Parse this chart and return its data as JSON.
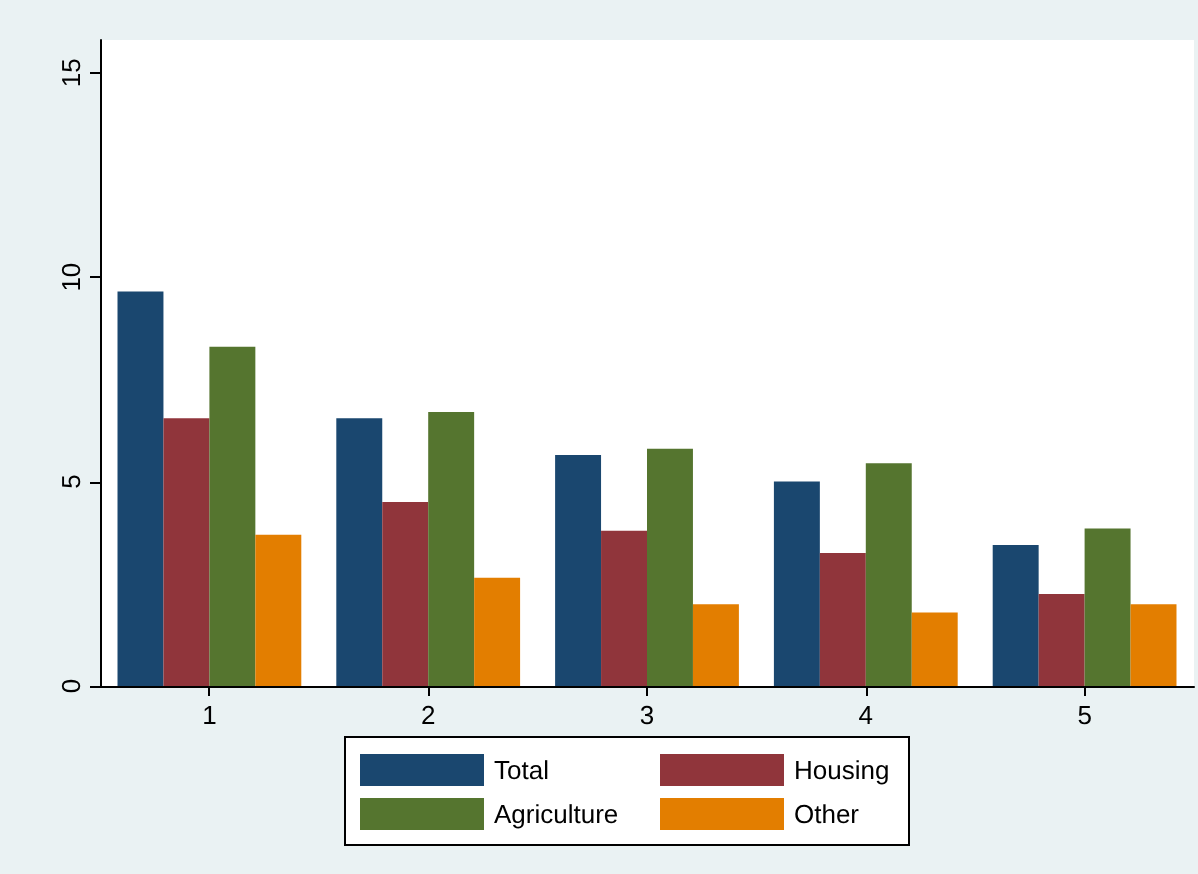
{
  "chart_data": {
    "type": "bar",
    "categories": [
      "1",
      "2",
      "3",
      "4",
      "5"
    ],
    "series": [
      {
        "name": "Total",
        "color": "#1a476f",
        "values": [
          9.65,
          6.55,
          5.65,
          5.0,
          3.45
        ]
      },
      {
        "name": "Housing",
        "color": "#90353b",
        "values": [
          6.55,
          4.5,
          3.8,
          3.25,
          2.25
        ]
      },
      {
        "name": "Agriculture",
        "color": "#55752f",
        "values": [
          8.3,
          6.7,
          5.8,
          5.45,
          3.85
        ]
      },
      {
        "name": "Other",
        "color": "#e37e00",
        "values": [
          3.7,
          2.65,
          2.0,
          1.8,
          2.0
        ]
      }
    ],
    "ylim": [
      0,
      15.8
    ],
    "yticks": [
      0,
      5,
      10,
      15
    ],
    "grid": false,
    "legend": "bottom"
  }
}
